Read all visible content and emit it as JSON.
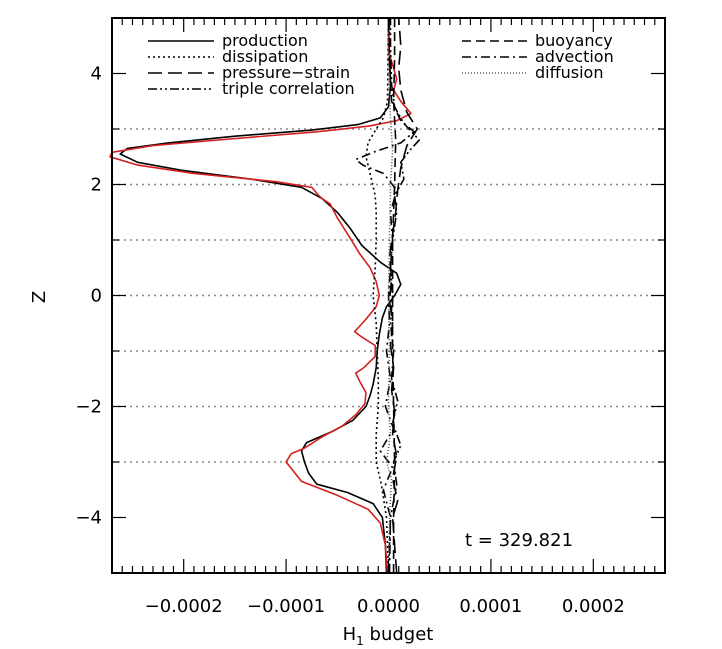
{
  "chart_data": {
    "type": "line",
    "title": "",
    "xlabel": "H",
    "xlabel_subscript": "1",
    "xlabel_suffix": " budget",
    "ylabel": "Z",
    "xlim": [
      -0.00027,
      0.00027
    ],
    "ylim": [
      -5,
      5
    ],
    "x_ticks": [
      {
        "v": -0.0002,
        "label": "−0.0002"
      },
      {
        "v": -0.0001,
        "label": "−0.0001"
      },
      {
        "v": 0,
        "label": "0.0000"
      },
      {
        "v": 0.0001,
        "label": "0.0001"
      },
      {
        "v": 0.0002,
        "label": "0.0002"
      }
    ],
    "y_ticks": [
      {
        "v": -4,
        "label": "−4"
      },
      {
        "v": -2,
        "label": "−2"
      },
      {
        "v": 0,
        "label": "0"
      },
      {
        "v": 2,
        "label": "2"
      },
      {
        "v": 4,
        "label": "4"
      }
    ],
    "hgrid": [
      -3,
      -2,
      -1,
      0,
      1,
      2,
      3
    ],
    "time_label": "t = 329.821",
    "legend_left": [
      {
        "name": "production",
        "dash": "solid"
      },
      {
        "name": "dissipation",
        "dash": "dotted"
      },
      {
        "name": "pressure−strain",
        "dash": "longdash"
      },
      {
        "name": "triple correlation",
        "dash": "dashdotdot"
      }
    ],
    "legend_right": [
      {
        "name": "buoyancy",
        "dash": "dashed"
      },
      {
        "name": "advection",
        "dash": "dashdot"
      },
      {
        "name": "diffusion",
        "dash": "finedotted"
      }
    ],
    "series": [
      {
        "name": "production",
        "color": "#000000",
        "dash": "solid",
        "points": [
          [
            -2e-06,
            -5
          ],
          [
            -3e-06,
            -4.5
          ],
          [
            -6e-06,
            -4.0
          ],
          [
            -1.5e-05,
            -3.75
          ],
          [
            -4e-05,
            -3.55
          ],
          [
            -7e-05,
            -3.4
          ],
          [
            -7.8e-05,
            -3.2
          ],
          [
            -8.2e-05,
            -3.0
          ],
          [
            -8.5e-05,
            -2.8
          ],
          [
            -8e-05,
            -2.65
          ],
          [
            -5.5e-05,
            -2.45
          ],
          [
            -3.5e-05,
            -2.25
          ],
          [
            -2.2e-05,
            -2.0
          ],
          [
            -1.8e-05,
            -1.8
          ],
          [
            -1.5e-05,
            -1.6
          ],
          [
            -1.2e-05,
            -1.3
          ],
          [
            -1.1e-05,
            -1.0
          ],
          [
            -9e-06,
            -0.7
          ],
          [
            -6e-06,
            -0.4
          ],
          [
            -2e-06,
            -0.2
          ],
          [
            6e-06,
            0
          ],
          [
            1.2e-05,
            0.2
          ],
          [
            8e-06,
            0.4
          ],
          [
            -8e-06,
            0.6
          ],
          [
            -2.6e-05,
            0.9
          ],
          [
            -3.7e-05,
            1.2
          ],
          [
            -5e-05,
            1.5
          ],
          [
            -6.5e-05,
            1.75
          ],
          [
            -8.5e-05,
            1.95
          ],
          [
            -0.000135,
            2.1
          ],
          [
            -0.0002,
            2.25
          ],
          [
            -0.000245,
            2.4
          ],
          [
            -0.000262,
            2.55
          ],
          [
            -0.000255,
            2.65
          ],
          [
            -0.000215,
            2.75
          ],
          [
            -0.00015,
            2.87
          ],
          [
            -7.5e-05,
            2.98
          ],
          [
            -3e-05,
            3.08
          ],
          [
            -8e-06,
            3.2
          ],
          [
            0,
            3.4
          ],
          [
            2e-06,
            3.8
          ],
          [
            1e-06,
            4.3
          ],
          [
            0,
            5
          ]
        ]
      },
      {
        "name": "red",
        "color": "#d42020",
        "dash": "solid",
        "points": [
          [
            -1e-06,
            -5
          ],
          [
            -3e-06,
            -4.5
          ],
          [
            -8e-06,
            -4.1
          ],
          [
            -2e-05,
            -3.85
          ],
          [
            -5e-05,
            -3.6
          ],
          [
            -8.5e-05,
            -3.35
          ],
          [
            -0.0001,
            -3.0
          ],
          [
            -9.5e-05,
            -2.85
          ],
          [
            -8.2e-05,
            -2.75
          ],
          [
            -6.5e-05,
            -2.55
          ],
          [
            -4.5e-05,
            -2.35
          ],
          [
            -3.2e-05,
            -2.15
          ],
          [
            -2.3e-05,
            -1.95
          ],
          [
            -2.2e-05,
            -1.75
          ],
          [
            -2.8e-05,
            -1.55
          ],
          [
            -3.2e-05,
            -1.4
          ],
          [
            -2.4e-05,
            -1.3
          ],
          [
            -1.3e-05,
            -1.1
          ],
          [
            -1.3e-05,
            -0.9
          ],
          [
            -2.6e-05,
            -0.75
          ],
          [
            -3.3e-05,
            -0.65
          ],
          [
            -2.3e-05,
            -0.45
          ],
          [
            -1.2e-05,
            -0.2
          ],
          [
            -9e-06,
            0
          ],
          [
            -1.2e-05,
            0.25
          ],
          [
            -1.8e-05,
            0.5
          ],
          [
            -2.8e-05,
            0.75
          ],
          [
            -3.8e-05,
            1.05
          ],
          [
            -5e-05,
            1.4
          ],
          [
            -5.7e-05,
            1.65
          ],
          [
            -6.5e-05,
            1.75
          ],
          [
            -6.8e-05,
            1.8
          ],
          [
            -7.5e-05,
            1.95
          ],
          [
            -0.00011,
            2.05
          ],
          [
            -0.00019,
            2.2
          ],
          [
            -0.000245,
            2.35
          ],
          [
            -0.000272,
            2.5
          ],
          [
            -0.00027,
            2.58
          ],
          [
            -0.00023,
            2.7
          ],
          [
            -0.000155,
            2.82
          ],
          [
            -7e-05,
            2.95
          ],
          [
            -2e-05,
            3.05
          ],
          [
            8e-06,
            3.15
          ],
          [
            2.2e-05,
            3.28
          ],
          [
            1.2e-05,
            3.5
          ],
          [
            5e-06,
            3.7
          ],
          [
            8e-06,
            3.9
          ],
          [
            5e-06,
            4.1
          ],
          [
            0,
            4.4
          ],
          [
            0,
            5
          ]
        ]
      },
      {
        "name": "pressure-strain",
        "color": "#000000",
        "dash": "longdash",
        "points": [
          [
            8e-06,
            -5
          ],
          [
            6e-06,
            -4.5
          ],
          [
            4e-06,
            -4
          ],
          [
            9e-06,
            -3.7
          ],
          [
            4e-06,
            -3.3
          ],
          [
            8e-06,
            -2.9
          ],
          [
            4e-06,
            -2.5
          ],
          [
            6e-06,
            -2.1
          ],
          [
            3e-06,
            -1.7
          ],
          [
            5e-06,
            -1.3
          ],
          [
            2e-06,
            -0.9
          ],
          [
            4e-06,
            -0.5
          ],
          [
            1e-06,
            -0.1
          ],
          [
            3e-06,
            0.3
          ],
          [
            1e-06,
            0.7
          ],
          [
            4e-06,
            1.1
          ],
          [
            7e-06,
            1.5
          ],
          [
            9e-06,
            1.9
          ],
          [
            1.2e-05,
            2.3
          ],
          [
            1.8e-05,
            2.7
          ],
          [
            2.8e-05,
            3.0
          ],
          [
            1.8e-05,
            3.3
          ],
          [
            1.2e-05,
            3.7
          ],
          [
            1e-05,
            4.1
          ],
          [
            1.2e-05,
            4.5
          ],
          [
            1e-05,
            5
          ]
        ]
      },
      {
        "name": "dissipation",
        "color": "#000000",
        "dash": "dotted",
        "points": [
          [
            0,
            -5
          ],
          [
            -2e-06,
            -4
          ],
          [
            -7e-06,
            -3.4
          ],
          [
            -1.2e-05,
            -3.0
          ],
          [
            -1.2e-05,
            -2.5
          ],
          [
            -1e-05,
            -2.0
          ],
          [
            -1e-05,
            -1.5
          ],
          [
            -1.1e-05,
            -1.0
          ],
          [
            -1.2e-05,
            -0.5
          ],
          [
            -1.5e-05,
            0
          ],
          [
            -1.3e-05,
            0.5
          ],
          [
            -1.2e-05,
            1.0
          ],
          [
            -1.2e-05,
            1.5
          ],
          [
            -1.3e-05,
            1.8
          ],
          [
            -1.8e-05,
            2.2
          ],
          [
            -2.2e-05,
            2.5
          ],
          [
            -2e-05,
            2.75
          ],
          [
            -1.2e-05,
            3.0
          ],
          [
            -5e-06,
            3.2
          ],
          [
            -1e-06,
            3.5
          ],
          [
            0,
            5
          ]
        ]
      },
      {
        "name": "triple correlation",
        "color": "#000000",
        "dash": "dashdotdot",
        "points": [
          [
            0,
            -5
          ],
          [
            2e-06,
            -4
          ],
          [
            8e-06,
            -3.4
          ],
          [
            5e-06,
            -3.0
          ],
          [
            1.2e-05,
            -2.7
          ],
          [
            4e-06,
            -2.3
          ],
          [
            9e-06,
            -1.9
          ],
          [
            3e-06,
            -1.5
          ],
          [
            5e-06,
            -1.0
          ],
          [
            2e-06,
            -0.5
          ],
          [
            4e-06,
            0
          ],
          [
            2e-06,
            0.5
          ],
          [
            4e-06,
            1.0
          ],
          [
            8e-06,
            1.5
          ],
          [
            6e-06,
            1.8
          ],
          [
            1.5e-05,
            2.1
          ],
          [
            1.2e-05,
            2.4
          ],
          [
            2e-05,
            2.6
          ],
          [
            3e-05,
            2.8
          ],
          [
            1.5e-05,
            3.1
          ],
          [
            6e-06,
            3.4
          ],
          [
            3e-06,
            3.8
          ],
          [
            2e-06,
            4.5
          ],
          [
            2e-06,
            5
          ]
        ]
      },
      {
        "name": "advection",
        "color": "#000000",
        "dash": "dashdot",
        "points": [
          [
            1e-06,
            -5
          ],
          [
            2e-06,
            -4
          ],
          [
            -5e-06,
            -3.5
          ],
          [
            4e-06,
            -3.1
          ],
          [
            -8e-06,
            -2.8
          ],
          [
            5e-06,
            -2.4
          ],
          [
            -3e-06,
            -2.0
          ],
          [
            2e-06,
            -1.5
          ],
          [
            -2e-06,
            -1.0
          ],
          [
            1e-06,
            -0.5
          ],
          [
            0,
            0
          ],
          [
            2e-06,
            0.5
          ],
          [
            4e-06,
            1.0
          ],
          [
            2e-06,
            1.5
          ],
          [
            8e-06,
            1.9
          ],
          [
            -5e-06,
            2.2
          ],
          [
            -2.5e-05,
            2.35
          ],
          [
            -3.2e-05,
            2.45
          ],
          [
            -1.2e-05,
            2.6
          ],
          [
            1.2e-05,
            2.75
          ],
          [
            2.5e-05,
            2.95
          ],
          [
            1.2e-05,
            3.15
          ],
          [
            3e-06,
            3.5
          ],
          [
            1e-06,
            4.2
          ],
          [
            1e-06,
            5
          ]
        ]
      },
      {
        "name": "buoyancy",
        "color": "#000000",
        "dash": "dashed",
        "points": [
          [
            5e-06,
            -5
          ],
          [
            5e-06,
            -4
          ],
          [
            6e-06,
            -3
          ],
          [
            5e-06,
            -2
          ],
          [
            4e-06,
            -1
          ],
          [
            4e-06,
            0
          ],
          [
            4e-06,
            1
          ],
          [
            6e-06,
            2
          ],
          [
            7e-06,
            2.8
          ],
          [
            5e-06,
            3.5
          ],
          [
            6e-06,
            4.3
          ],
          [
            6e-06,
            5
          ]
        ]
      },
      {
        "name": "diffusion",
        "color": "#555555",
        "dash": "finedotted",
        "points": [
          [
            0,
            -5
          ],
          [
            1e-06,
            -4
          ],
          [
            3e-06,
            -3.3
          ],
          [
            -2e-06,
            -3.0
          ],
          [
            2e-06,
            -2.5
          ],
          [
            0,
            -2.0
          ],
          [
            1e-06,
            -1.0
          ],
          [
            0,
            0
          ],
          [
            1e-06,
            1.0
          ],
          [
            2e-06,
            2.0
          ],
          [
            4e-06,
            2.6
          ],
          [
            2e-06,
            3.2
          ],
          [
            0,
            4
          ],
          [
            0,
            5
          ]
        ]
      }
    ]
  }
}
